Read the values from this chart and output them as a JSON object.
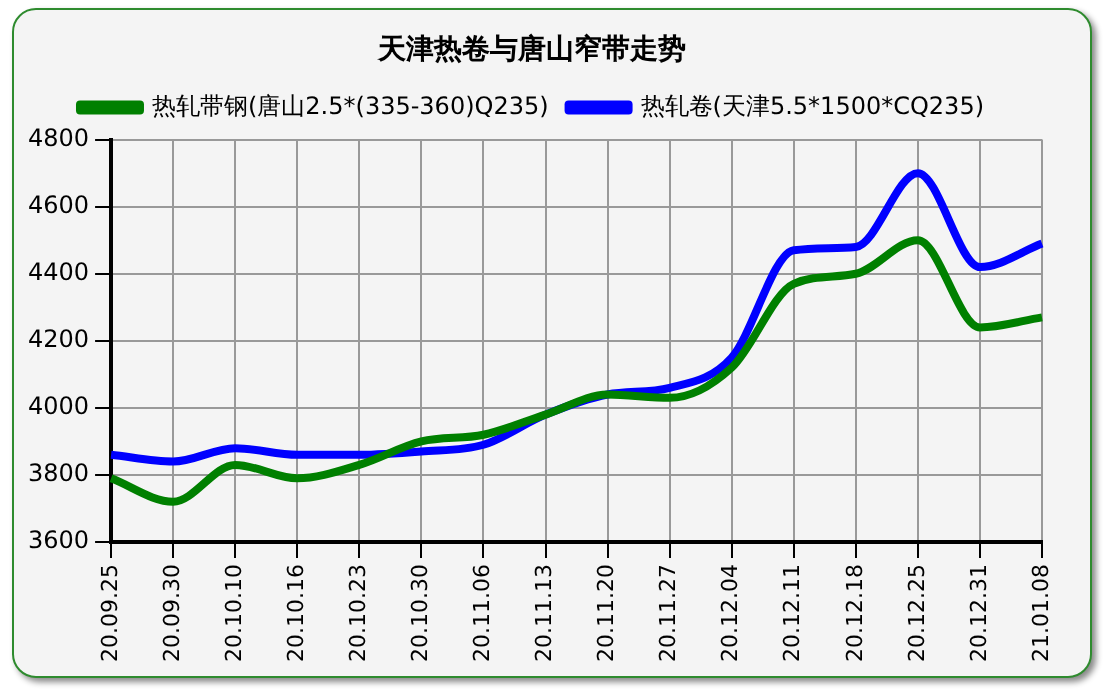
{
  "chart_data": {
    "type": "line",
    "title": "天津热卷与唐山窄带走势",
    "categories": [
      "20.09.25",
      "20.09.30",
      "20.10.10",
      "20.10.16",
      "20.10.23",
      "20.10.30",
      "20.11.06",
      "20.11.13",
      "20.11.20",
      "20.11.27",
      "20.12.04",
      "20.12.11",
      "20.12.18",
      "20.12.25",
      "20.12.31",
      "21.01.08"
    ],
    "series": [
      {
        "name": "热轧带钢(唐山2.5*(335-360)Q235)",
        "color": "#008000",
        "values": [
          3790,
          3720,
          3830,
          3790,
          3830,
          3900,
          3920,
          3980,
          4040,
          4030,
          4120,
          4370,
          4400,
          4500,
          4240,
          4270
        ]
      },
      {
        "name": "热轧卷(天津5.5*1500*CQ235)",
        "color": "#0000ff",
        "values": [
          3860,
          3840,
          3880,
          3860,
          3860,
          3870,
          3890,
          3980,
          4040,
          4060,
          4150,
          4470,
          4480,
          4700,
          4420,
          4490
        ]
      }
    ],
    "ylim": [
      3600,
      4800
    ],
    "yticks": [
      3600,
      3800,
      4000,
      4200,
      4400,
      4600,
      4800
    ],
    "grid": true,
    "legend": "top",
    "marker": "none",
    "line_style": "solid"
  }
}
